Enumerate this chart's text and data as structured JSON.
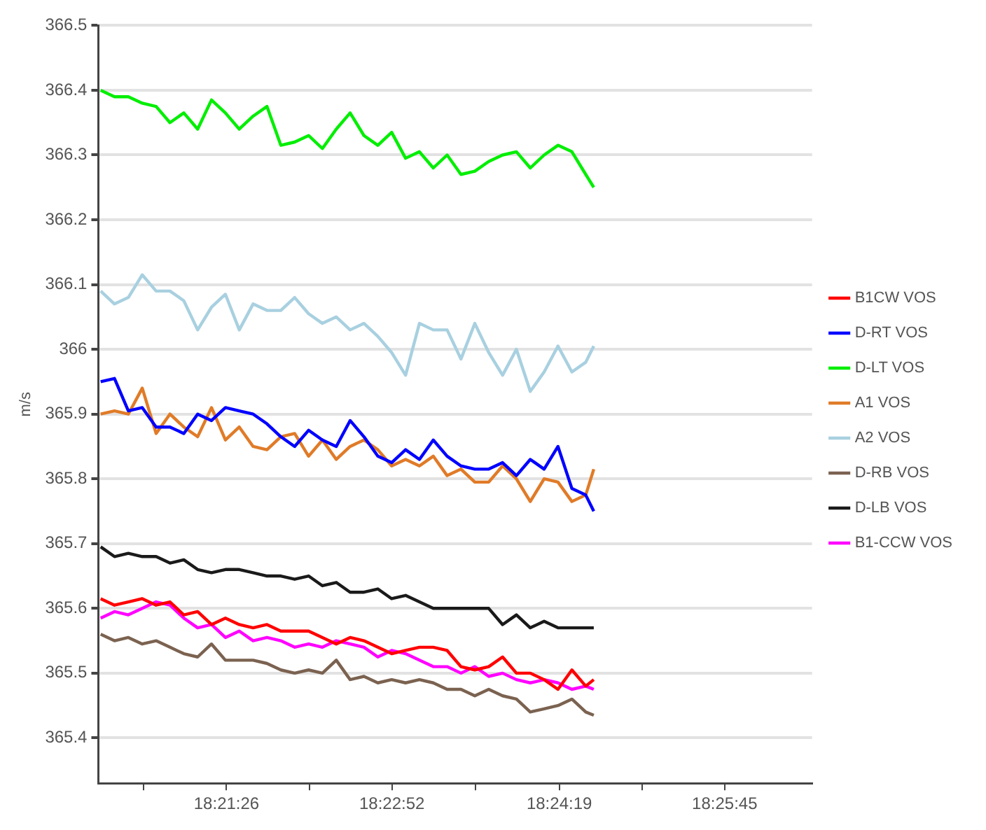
{
  "chart_data": {
    "type": "line",
    "ylabel": "m/s",
    "x": [
      18.33904,
      18.34104,
      18.34304,
      18.34505,
      18.34705,
      18.34905,
      18.35105,
      18.35305,
      18.35505,
      18.35706,
      18.35906,
      18.36106,
      18.36306,
      18.36506,
      18.36706,
      18.36907,
      18.37107,
      18.37307,
      18.37507,
      18.37707,
      18.37907,
      18.38107,
      18.38308,
      18.38508,
      18.38708,
      18.38908,
      18.39108,
      18.39308,
      18.39509,
      18.39709,
      18.39909,
      18.40109,
      18.40309,
      18.40509,
      18.4071,
      18.4091,
      18.41026
    ],
    "series": [
      {
        "name": "B1CW VOS",
        "color": "#ff0000",
        "values": [
          365.615,
          365.605,
          365.61,
          365.615,
          365.605,
          365.61,
          365.59,
          365.595,
          365.575,
          365.585,
          365.575,
          365.57,
          365.575,
          365.565,
          365.565,
          365.565,
          365.555,
          365.545,
          365.555,
          365.55,
          365.54,
          365.53,
          365.535,
          365.54,
          365.54,
          365.535,
          365.51,
          365.505,
          365.51,
          365.525,
          365.5,
          365.5,
          365.49,
          365.475,
          365.505,
          365.48,
          365.49
        ]
      },
      {
        "name": "D-RT VOS",
        "color": "#0000ff",
        "values": [
          365.95,
          365.955,
          365.905,
          365.91,
          365.88,
          365.88,
          365.87,
          365.9,
          365.89,
          365.91,
          365.905,
          365.9,
          365.885,
          365.865,
          365.85,
          365.875,
          365.86,
          365.85,
          365.89,
          365.865,
          365.835,
          365.825,
          365.845,
          365.83,
          365.86,
          365.835,
          365.82,
          365.815,
          365.815,
          365.825,
          365.805,
          365.83,
          365.815,
          365.85,
          365.785,
          365.775,
          365.75
        ]
      },
      {
        "name": "D-LT VOS",
        "color": "#00ee00",
        "values": [
          366.4,
          366.39,
          366.39,
          366.38,
          366.375,
          366.35,
          366.365,
          366.34,
          366.385,
          366.365,
          366.34,
          366.36,
          366.375,
          366.315,
          366.32,
          366.33,
          366.31,
          366.34,
          366.365,
          366.33,
          366.315,
          366.335,
          366.295,
          366.305,
          366.28,
          366.3,
          366.27,
          366.275,
          366.29,
          366.3,
          366.305,
          366.28,
          366.3,
          366.315,
          366.305,
          366.27,
          366.25
        ]
      },
      {
        "name": "A1 VOS",
        "color": "#e07b28",
        "values": [
          365.9,
          365.905,
          365.9,
          365.94,
          365.87,
          365.9,
          365.88,
          365.865,
          365.91,
          365.86,
          365.88,
          365.85,
          365.845,
          365.865,
          365.87,
          365.835,
          365.86,
          365.83,
          365.85,
          365.86,
          365.845,
          365.82,
          365.83,
          365.82,
          365.835,
          365.805,
          365.815,
          365.795,
          365.795,
          365.82,
          365.8,
          365.765,
          365.8,
          365.795,
          365.765,
          365.775,
          365.815
        ]
      },
      {
        "name": "A2 VOS",
        "color": "#a8d0e0",
        "values": [
          366.09,
          366.07,
          366.08,
          366.115,
          366.09,
          366.09,
          366.075,
          366.03,
          366.065,
          366.085,
          366.03,
          366.07,
          366.06,
          366.06,
          366.08,
          366.055,
          366.04,
          366.05,
          366.03,
          366.04,
          366.02,
          365.995,
          365.96,
          366.04,
          366.03,
          366.03,
          365.985,
          366.04,
          365.995,
          365.96,
          366.0,
          365.935,
          365.965,
          366.005,
          365.965,
          365.98,
          366.005
        ]
      },
      {
        "name": "D-RB VOS",
        "color": "#7b6250",
        "values": [
          365.56,
          365.55,
          365.555,
          365.545,
          365.55,
          365.54,
          365.53,
          365.525,
          365.545,
          365.52,
          365.52,
          365.52,
          365.515,
          365.505,
          365.5,
          365.505,
          365.5,
          365.52,
          365.49,
          365.495,
          365.485,
          365.49,
          365.485,
          365.49,
          365.485,
          365.475,
          365.475,
          365.465,
          365.475,
          365.465,
          365.46,
          365.44,
          365.445,
          365.45,
          365.46,
          365.44,
          365.435
        ]
      },
      {
        "name": "D-LB VOS",
        "color": "#1a1a1a",
        "values": [
          365.695,
          365.68,
          365.685,
          365.68,
          365.68,
          365.67,
          365.675,
          365.66,
          365.655,
          365.66,
          365.66,
          365.655,
          365.65,
          365.65,
          365.645,
          365.65,
          365.635,
          365.64,
          365.625,
          365.625,
          365.63,
          365.615,
          365.62,
          365.61,
          365.6,
          365.6,
          365.6,
          365.6,
          365.6,
          365.575,
          365.59,
          365.57,
          365.58,
          365.57,
          365.57,
          365.57,
          365.57
        ]
      },
      {
        "name": "B1-CCW VOS",
        "color": "#ff00ff",
        "values": [
          365.585,
          365.595,
          365.59,
          365.6,
          365.61,
          365.605,
          365.585,
          365.57,
          365.575,
          365.555,
          365.565,
          365.55,
          365.555,
          365.55,
          365.54,
          365.545,
          365.54,
          365.55,
          365.545,
          365.54,
          365.525,
          365.535,
          365.53,
          365.52,
          365.51,
          365.51,
          365.5,
          365.51,
          365.495,
          365.5,
          365.49,
          365.485,
          365.49,
          365.485,
          365.475,
          365.48,
          365.475
        ]
      }
    ],
    "xlim": [
      18.33871,
      18.44179
    ],
    "xticks": [
      {
        "value": 18.345208,
        "label": null
      },
      {
        "value": 18.357222,
        "label": "18:21:26"
      },
      {
        "value": 18.369167,
        "label": null
      },
      {
        "value": 18.381111,
        "label": "18:22:52"
      },
      {
        "value": 18.393194,
        "label": null
      },
      {
        "value": 18.405278,
        "label": "18:24:19"
      },
      {
        "value": 18.417222,
        "label": null
      },
      {
        "value": 18.429167,
        "label": "18:25:45"
      }
    ],
    "ylim": [
      365.33,
      366.5
    ],
    "yticks": [
      365.4,
      365.5,
      365.6,
      365.7,
      365.8,
      365.9,
      {
        "value": 366,
        "label": "366"
      },
      366.1,
      366.2,
      366.3,
      366.4,
      366.5
    ],
    "grid": "y",
    "legend": "right",
    "marker": "none",
    "line_style": "solid"
  }
}
